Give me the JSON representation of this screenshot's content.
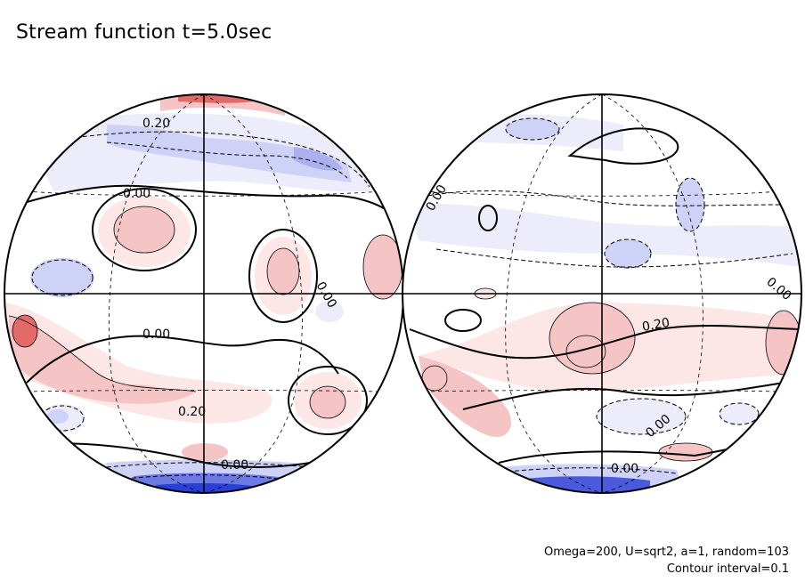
{
  "title": "Stream function t=5.0sec",
  "footer": {
    "params": "Omega=200, U=sqrt2, a=1, random=103",
    "contour_interval": "Contour interval=0.1"
  },
  "colors": {
    "positive_light": "#fce6e6",
    "positive_mid": "#f5c4c4",
    "positive_strong": "#e46a6a",
    "negative_light": "#ececfb",
    "negative_mid": "#cfd2f7",
    "negative_strong": "#2a3fd6",
    "line": "#000000"
  },
  "chart_data": {
    "type": "contour",
    "projection": "orthographic",
    "field": "stream function",
    "time": "t=5.0sec",
    "contour_interval": 0.1,
    "hemispheres": [
      {
        "name": "left",
        "contour_labels": [
          "0.20",
          "0.00",
          "0.00",
          "0.00",
          "0.20",
          "0.00"
        ]
      },
      {
        "name": "right",
        "contour_labels": [
          "0.00",
          "0.00",
          "0.20",
          "0.00",
          "0.00"
        ]
      }
    ]
  }
}
